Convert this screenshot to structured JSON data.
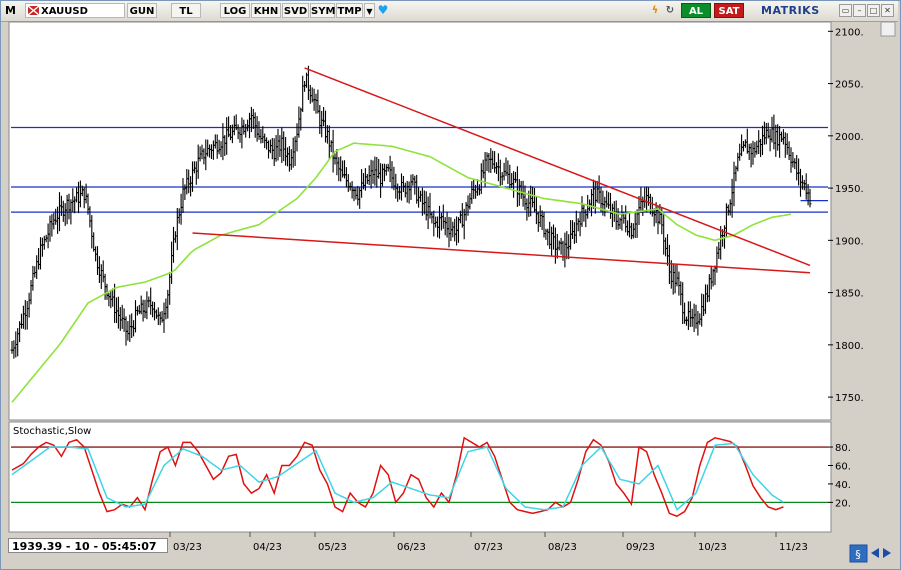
{
  "toolbar": {
    "m_label": "M",
    "symbol": "XAUUSD",
    "buttons": [
      "GUN",
      "TL",
      "LOG",
      "KHN",
      "SVD",
      "SYM",
      "TMP"
    ],
    "al_label": "AL",
    "sat_label": "SAT",
    "brand": "MATRIKS"
  },
  "status_bar": {
    "readout": "1939.39 - 10 - 05:45:07"
  },
  "colors": {
    "price_bars": "#000000",
    "moving_average": "#8fe33a",
    "channel_lines": "#d81818",
    "horizontal_levels": "#1630c8",
    "stoch_k": "#e01010",
    "stoch_d": "#3fd4e6",
    "stoch_upper": "#8b1a1a",
    "stoch_lower": "#0a8a1a"
  },
  "chart_data": [
    {
      "type": "ohlc",
      "x_tick_labels": [
        "03/23",
        "04/23",
        "05/23",
        "06/23",
        "07/23",
        "08/23",
        "09/23",
        "10/23",
        "11/23"
      ],
      "y_ticks": [
        1750,
        1800,
        1850,
        1900,
        1950,
        2000,
        2050,
        2100
      ],
      "y_tick_labels": [
        "1750.",
        "1800.",
        "1850.",
        "1900.",
        "1950.",
        "2000.",
        "2050.",
        "2100."
      ],
      "ylim": [
        1730,
        2107
      ],
      "close_anchors": [
        [
          0,
          1795
        ],
        [
          8,
          1840
        ],
        [
          15,
          1890
        ],
        [
          22,
          1920
        ],
        [
          29,
          1935
        ],
        [
          34,
          1940
        ],
        [
          38,
          1945
        ],
        [
          40,
          1930
        ],
        [
          44,
          1885
        ],
        [
          48,
          1862
        ],
        [
          53,
          1840
        ],
        [
          57,
          1825
        ],
        [
          61,
          1810
        ],
        [
          66,
          1830
        ],
        [
          70,
          1835
        ],
        [
          74,
          1840
        ],
        [
          78,
          1820
        ],
        [
          82,
          1850
        ],
        [
          86,
          1910
        ],
        [
          90,
          1945
        ],
        [
          94,
          1960
        ],
        [
          98,
          1975
        ],
        [
          102,
          1985
        ],
        [
          106,
          1990
        ],
        [
          110,
          1995
        ],
        [
          114,
          2000
        ],
        [
          118,
          2005
        ],
        [
          122,
          2010
        ],
        [
          126,
          2020
        ],
        [
          130,
          2000
        ],
        [
          134,
          1990
        ],
        [
          138,
          1985
        ],
        [
          142,
          1992
        ],
        [
          146,
          1978
        ],
        [
          150,
          2005
        ],
        [
          154,
          2055
        ],
        [
          158,
          2040
        ],
        [
          162,
          2015
        ],
        [
          166,
          2000
        ],
        [
          170,
          1975
        ],
        [
          174,
          1960
        ],
        [
          178,
          1955
        ],
        [
          182,
          1945
        ],
        [
          186,
          1955
        ],
        [
          190,
          1965
        ],
        [
          194,
          1960
        ],
        [
          198,
          1965
        ],
        [
          202,
          1955
        ],
        [
          206,
          1948
        ],
        [
          210,
          1958
        ],
        [
          214,
          1940
        ],
        [
          218,
          1930
        ],
        [
          222,
          1915
        ],
        [
          226,
          1920
        ],
        [
          230,
          1912
        ],
        [
          234,
          1910
        ],
        [
          238,
          1925
        ],
        [
          242,
          1945
        ],
        [
          246,
          1955
        ],
        [
          250,
          1975
        ],
        [
          254,
          1975
        ],
        [
          258,
          1965
        ],
        [
          262,
          1960
        ],
        [
          266,
          1950
        ],
        [
          270,
          1940
        ],
        [
          274,
          1932
        ],
        [
          278,
          1920
        ],
        [
          282,
          1905
        ],
        [
          286,
          1895
        ],
        [
          290,
          1890
        ],
        [
          294,
          1900
        ],
        [
          298,
          1920
        ],
        [
          302,
          1930
        ],
        [
          306,
          1945
        ],
        [
          310,
          1940
        ],
        [
          314,
          1930
        ],
        [
          318,
          1920
        ],
        [
          322,
          1920
        ],
        [
          326,
          1910
        ],
        [
          330,
          1930
        ],
        [
          334,
          1940
        ],
        [
          338,
          1930
        ],
        [
          342,
          1915
        ],
        [
          346,
          1870
        ],
        [
          350,
          1860
        ],
        [
          354,
          1830
        ],
        [
          358,
          1820
        ],
        [
          362,
          1830
        ],
        [
          366,
          1850
        ],
        [
          370,
          1880
        ],
        [
          374,
          1910
        ],
        [
          378,
          1940
        ],
        [
          382,
          1975
        ],
        [
          386,
          1990
        ],
        [
          390,
          1985
        ],
        [
          394,
          1995
        ],
        [
          398,
          2005
        ],
        [
          402,
          1998
        ],
        [
          406,
          2000
        ],
        [
          410,
          1980
        ],
        [
          414,
          1960
        ],
        [
          418,
          1950
        ],
        [
          420,
          1940
        ]
      ],
      "moving_average_anchors": [
        [
          0,
          1745
        ],
        [
          25,
          1800
        ],
        [
          40,
          1840
        ],
        [
          55,
          1855
        ],
        [
          70,
          1860
        ],
        [
          85,
          1870
        ],
        [
          95,
          1890
        ],
        [
          110,
          1905
        ],
        [
          130,
          1915
        ],
        [
          150,
          1940
        ],
        [
          160,
          1960
        ],
        [
          170,
          1985
        ],
        [
          180,
          1993
        ],
        [
          200,
          1990
        ],
        [
          220,
          1980
        ],
        [
          240,
          1960
        ],
        [
          260,
          1950
        ],
        [
          280,
          1940
        ],
        [
          300,
          1935
        ],
        [
          320,
          1925
        ],
        [
          340,
          1930
        ],
        [
          350,
          1915
        ],
        [
          360,
          1905
        ],
        [
          370,
          1900
        ],
        [
          380,
          1905
        ],
        [
          390,
          1915
        ],
        [
          400,
          1922
        ],
        [
          410,
          1925
        ]
      ],
      "horizontal_levels": [
        2008,
        1951,
        1927
      ],
      "short_levels": [
        1938
      ],
      "trend_lines": [
        {
          "x1": 154,
          "y1": 2065,
          "x2": 420,
          "y2": 1876
        },
        {
          "x1": 95,
          "y1": 1907,
          "x2": 420,
          "y2": 1869
        }
      ]
    },
    {
      "type": "line",
      "title": "Stochastic,Slow",
      "y_ticks": [
        20,
        40,
        60,
        80
      ],
      "y_tick_labels": [
        "20.",
        "40.",
        "60.",
        "80."
      ],
      "ylim": [
        -10,
        105
      ],
      "guide_levels": [
        80,
        20
      ],
      "series": [
        {
          "values_anchors": [
            [
              0,
              55
            ],
            [
              6,
              62
            ],
            [
              10,
              72
            ],
            [
              14,
              80
            ],
            [
              18,
              85
            ],
            [
              22,
              82
            ],
            [
              26,
              70
            ],
            [
              30,
              85
            ],
            [
              34,
              88
            ],
            [
              38,
              80
            ],
            [
              42,
              55
            ],
            [
              46,
              30
            ],
            [
              50,
              10
            ],
            [
              54,
              12
            ],
            [
              58,
              18
            ],
            [
              62,
              15
            ],
            [
              66,
              25
            ],
            [
              70,
              12
            ],
            [
              74,
              45
            ],
            [
              78,
              75
            ],
            [
              82,
              80
            ],
            [
              86,
              60
            ],
            [
              90,
              85
            ],
            [
              94,
              85
            ],
            [
              98,
              75
            ],
            [
              102,
              60
            ],
            [
              106,
              45
            ],
            [
              110,
              52
            ],
            [
              114,
              70
            ],
            [
              118,
              72
            ],
            [
              122,
              40
            ],
            [
              126,
              30
            ],
            [
              130,
              35
            ],
            [
              134,
              50
            ],
            [
              138,
              30
            ],
            [
              142,
              60
            ],
            [
              146,
              60
            ],
            [
              150,
              70
            ],
            [
              154,
              85
            ],
            [
              158,
              82
            ],
            [
              162,
              55
            ],
            [
              166,
              40
            ],
            [
              170,
              15
            ],
            [
              174,
              10
            ],
            [
              178,
              30
            ],
            [
              182,
              20
            ],
            [
              186,
              15
            ],
            [
              190,
              30
            ],
            [
              194,
              60
            ],
            [
              198,
              50
            ],
            [
              202,
              20
            ],
            [
              206,
              30
            ],
            [
              210,
              50
            ],
            [
              214,
              45
            ],
            [
              218,
              25
            ],
            [
              222,
              15
            ],
            [
              226,
              30
            ],
            [
              230,
              20
            ],
            [
              234,
              50
            ],
            [
              238,
              90
            ],
            [
              242,
              85
            ],
            [
              246,
              80
            ],
            [
              250,
              85
            ],
            [
              254,
              70
            ],
            [
              258,
              45
            ],
            [
              262,
              20
            ],
            [
              266,
              12
            ],
            [
              270,
              10
            ],
            [
              274,
              8
            ],
            [
              278,
              10
            ],
            [
              282,
              12
            ],
            [
              286,
              20
            ],
            [
              290,
              15
            ],
            [
              294,
              20
            ],
            [
              298,
              45
            ],
            [
              302,
              75
            ],
            [
              306,
              88
            ],
            [
              310,
              82
            ],
            [
              314,
              65
            ],
            [
              318,
              40
            ],
            [
              322,
              30
            ],
            [
              326,
              18
            ],
            [
              330,
              80
            ],
            [
              334,
              75
            ],
            [
              338,
              50
            ],
            [
              342,
              30
            ],
            [
              346,
              8
            ],
            [
              350,
              5
            ],
            [
              354,
              10
            ],
            [
              358,
              25
            ],
            [
              362,
              60
            ],
            [
              366,
              85
            ],
            [
              370,
              90
            ],
            [
              374,
              88
            ],
            [
              378,
              86
            ],
            [
              382,
              80
            ],
            [
              386,
              60
            ],
            [
              390,
              38
            ],
            [
              394,
              25
            ],
            [
              398,
              15
            ],
            [
              402,
              12
            ],
            [
              406,
              15
            ]
          ]
        },
        {
          "values_anchors": [
            [
              0,
              50
            ],
            [
              10,
              65
            ],
            [
              20,
              80
            ],
            [
              30,
              80
            ],
            [
              40,
              78
            ],
            [
              50,
              25
            ],
            [
              60,
              15
            ],
            [
              70,
              18
            ],
            [
              80,
              60
            ],
            [
              90,
              78
            ],
            [
              100,
              70
            ],
            [
              110,
              55
            ],
            [
              120,
              60
            ],
            [
              130,
              42
            ],
            [
              140,
              48
            ],
            [
              150,
              62
            ],
            [
              160,
              76
            ],
            [
              170,
              30
            ],
            [
              180,
              20
            ],
            [
              190,
              25
            ],
            [
              200,
              42
            ],
            [
              210,
              35
            ],
            [
              220,
              28
            ],
            [
              230,
              25
            ],
            [
              240,
              75
            ],
            [
              250,
              80
            ],
            [
              260,
              35
            ],
            [
              270,
              15
            ],
            [
              280,
              12
            ],
            [
              290,
              15
            ],
            [
              300,
              60
            ],
            [
              310,
              80
            ],
            [
              320,
              45
            ],
            [
              330,
              40
            ],
            [
              340,
              60
            ],
            [
              350,
              12
            ],
            [
              360,
              30
            ],
            [
              370,
              82
            ],
            [
              380,
              84
            ],
            [
              390,
              50
            ],
            [
              400,
              28
            ],
            [
              406,
              20
            ]
          ]
        }
      ]
    }
  ]
}
